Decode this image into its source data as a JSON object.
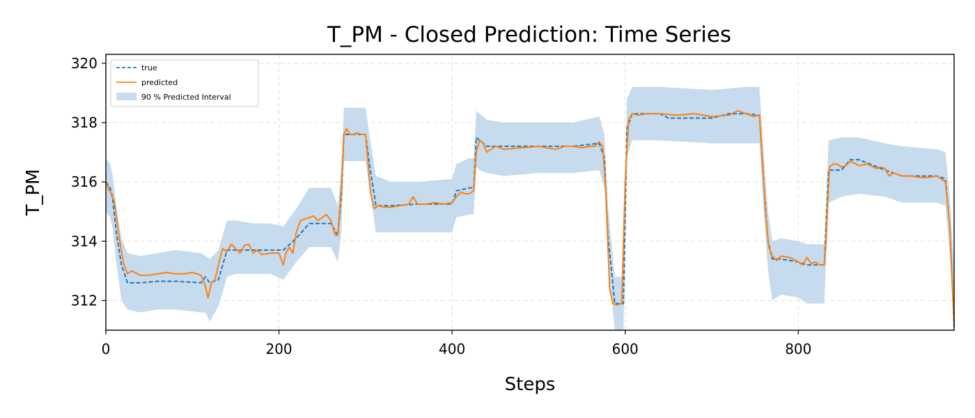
{
  "chart_data": {
    "type": "line",
    "title": "T_PM - Closed Prediction: Time Series",
    "xlabel": "Steps",
    "ylabel": "T_PM",
    "xlim": [
      0,
      980
    ],
    "ylim": [
      311.0,
      320.3
    ],
    "xticks": [
      0,
      200,
      400,
      600,
      800
    ],
    "yticks": [
      312,
      314,
      316,
      318,
      320
    ],
    "grid": true,
    "legend_position": "top-left",
    "legend": [
      "true",
      "predicted",
      "90 % Predicted Interval"
    ],
    "colors": {
      "true": "#1f77b4",
      "predicted": "#ff7f0e",
      "interval": "#c6dbed"
    },
    "series": [
      {
        "name": "true",
        "style": "dashed",
        "x": [
          0,
          5,
          8,
          12,
          18,
          25,
          40,
          60,
          80,
          110,
          115,
          120,
          130,
          140,
          150,
          170,
          190,
          205,
          220,
          235,
          260,
          268,
          272,
          275,
          300,
          305,
          312,
          330,
          360,
          400,
          405,
          420,
          425,
          428,
          432,
          440,
          460,
          500,
          540,
          570,
          576,
          580,
          588,
          598,
          602,
          608,
          640,
          650,
          700,
          720,
          740,
          755,
          760,
          765,
          770,
          780,
          800,
          810,
          830,
          835,
          850,
          860,
          870,
          900,
          920,
          960,
          970,
          975,
          980
        ],
        "y": [
          316.0,
          315.8,
          315.4,
          314.3,
          313.2,
          312.6,
          312.6,
          312.65,
          312.65,
          312.6,
          312.8,
          312.6,
          312.7,
          313.7,
          313.7,
          313.7,
          313.7,
          313.7,
          314.1,
          314.6,
          314.6,
          314.2,
          315.5,
          317.6,
          317.6,
          316.5,
          315.2,
          315.2,
          315.25,
          315.25,
          315.7,
          315.8,
          315.8,
          317.5,
          317.4,
          317.2,
          317.2,
          317.2,
          317.2,
          317.3,
          316.8,
          314.2,
          311.9,
          311.9,
          317.8,
          318.3,
          318.3,
          318.15,
          318.15,
          318.3,
          318.3,
          318.25,
          316.0,
          314.0,
          313.4,
          313.4,
          313.3,
          313.2,
          313.2,
          316.4,
          316.4,
          316.75,
          316.75,
          316.4,
          316.2,
          316.2,
          316.1,
          314.5,
          311.1
        ]
      },
      {
        "name": "predicted",
        "style": "solid",
        "x": [
          0,
          4,
          7,
          10,
          15,
          20,
          25,
          30,
          40,
          50,
          60,
          70,
          80,
          90,
          100,
          110,
          115,
          118,
          122,
          126,
          130,
          135,
          140,
          145,
          150,
          155,
          160,
          165,
          170,
          175,
          180,
          190,
          200,
          205,
          208,
          212,
          216,
          220,
          225,
          230,
          235,
          240,
          245,
          250,
          255,
          260,
          265,
          268,
          272,
          275,
          278,
          282,
          286,
          290,
          295,
          300,
          303,
          306,
          310,
          315,
          320,
          330,
          340,
          350,
          355,
          360,
          370,
          380,
          390,
          400,
          405,
          410,
          415,
          420,
          425,
          428,
          432,
          436,
          440,
          445,
          450,
          460,
          480,
          500,
          510,
          520,
          530,
          540,
          550,
          560,
          565,
          570,
          574,
          578,
          582,
          586,
          590,
          596,
          600,
          604,
          608,
          615,
          625,
          640,
          660,
          680,
          700,
          720,
          730,
          740,
          748,
          755,
          758,
          762,
          766,
          770,
          775,
          780,
          790,
          800,
          805,
          810,
          815,
          820,
          825,
          830,
          832,
          836,
          840,
          845,
          850,
          855,
          860,
          870,
          880,
          890,
          895,
          900,
          905,
          910,
          920,
          930,
          940,
          950,
          960,
          965,
          970,
          975,
          980
        ],
        "y": [
          316.0,
          315.7,
          315.6,
          315.3,
          314.2,
          313.3,
          312.9,
          313.0,
          312.85,
          312.85,
          312.9,
          312.95,
          312.9,
          312.9,
          312.95,
          312.85,
          312.5,
          312.1,
          312.6,
          312.7,
          313.2,
          313.75,
          313.65,
          313.9,
          313.75,
          313.6,
          313.85,
          313.9,
          313.6,
          313.7,
          313.55,
          313.6,
          313.6,
          313.2,
          313.6,
          313.8,
          313.6,
          314.3,
          314.7,
          314.75,
          314.8,
          314.85,
          314.7,
          314.8,
          314.9,
          314.7,
          314.2,
          314.2,
          315.8,
          317.6,
          317.8,
          317.6,
          317.6,
          317.65,
          317.6,
          317.6,
          316.6,
          315.6,
          315.1,
          315.2,
          315.15,
          315.15,
          315.2,
          315.25,
          315.5,
          315.25,
          315.25,
          315.3,
          315.25,
          315.3,
          315.5,
          315.65,
          315.6,
          315.6,
          315.7,
          317.0,
          317.4,
          317.3,
          317.0,
          317.1,
          317.2,
          317.1,
          317.15,
          317.2,
          317.15,
          317.1,
          317.2,
          317.2,
          317.15,
          317.2,
          317.2,
          317.35,
          317.2,
          315.5,
          312.4,
          311.9,
          311.85,
          311.9,
          316.0,
          318.1,
          318.3,
          318.25,
          318.3,
          318.3,
          318.25,
          318.3,
          318.2,
          318.25,
          318.4,
          318.3,
          318.2,
          318.25,
          317.0,
          315.0,
          313.8,
          313.5,
          313.35,
          313.5,
          313.45,
          313.3,
          313.2,
          313.45,
          313.25,
          313.3,
          313.2,
          313.2,
          314.0,
          316.5,
          316.6,
          316.6,
          316.5,
          316.55,
          316.7,
          316.55,
          316.6,
          316.45,
          316.5,
          316.45,
          316.2,
          316.3,
          316.2,
          316.2,
          316.15,
          316.15,
          316.2,
          316.1,
          316.0,
          314.5,
          311.2
        ]
      }
    ],
    "interval": {
      "name": "90 % Predicted Interval",
      "x": [
        0,
        5,
        8,
        12,
        18,
        25,
        40,
        60,
        80,
        110,
        115,
        120,
        130,
        140,
        150,
        170,
        190,
        205,
        220,
        235,
        260,
        268,
        272,
        275,
        300,
        305,
        312,
        330,
        360,
        400,
        405,
        420,
        425,
        428,
        432,
        440,
        460,
        500,
        540,
        570,
        576,
        580,
        588,
        598,
        602,
        608,
        640,
        700,
        740,
        755,
        760,
        765,
        770,
        780,
        800,
        810,
        830,
        835,
        850,
        870,
        900,
        920,
        960,
        970,
        975,
        980
      ],
      "lower": [
        315.0,
        314.8,
        314.4,
        313.3,
        312.0,
        311.7,
        311.6,
        311.7,
        311.7,
        311.6,
        311.6,
        311.3,
        311.8,
        312.8,
        312.9,
        312.9,
        312.9,
        312.7,
        313.3,
        313.8,
        313.8,
        313.3,
        314.3,
        316.7,
        316.7,
        315.7,
        314.3,
        314.3,
        314.3,
        314.3,
        314.8,
        314.9,
        314.9,
        316.5,
        316.4,
        316.3,
        316.2,
        316.3,
        316.3,
        316.4,
        315.8,
        313.3,
        310.9,
        310.9,
        316.8,
        317.4,
        317.4,
        317.3,
        317.3,
        317.3,
        315.0,
        313.0,
        312.0,
        312.2,
        312.1,
        311.9,
        311.9,
        315.3,
        315.5,
        315.6,
        315.5,
        315.3,
        315.3,
        315.2,
        313.5,
        311.0
      ],
      "upper": [
        316.8,
        316.6,
        316.2,
        315.2,
        314.1,
        313.6,
        313.5,
        313.6,
        313.7,
        313.6,
        313.5,
        313.4,
        313.7,
        314.7,
        314.7,
        314.6,
        314.6,
        314.5,
        315.1,
        315.8,
        315.8,
        315.2,
        316.5,
        318.5,
        318.5,
        317.5,
        316.2,
        316.0,
        316.0,
        316.1,
        316.6,
        316.8,
        316.8,
        318.4,
        318.3,
        318.1,
        318.0,
        318.0,
        318.0,
        318.2,
        317.6,
        315.2,
        312.8,
        312.8,
        318.8,
        319.2,
        319.2,
        319.1,
        319.2,
        319.2,
        317.0,
        315.0,
        314.0,
        314.1,
        314.0,
        313.9,
        313.9,
        317.4,
        317.5,
        317.5,
        317.3,
        317.2,
        317.1,
        317.0,
        315.5,
        313.0
      ]
    }
  }
}
